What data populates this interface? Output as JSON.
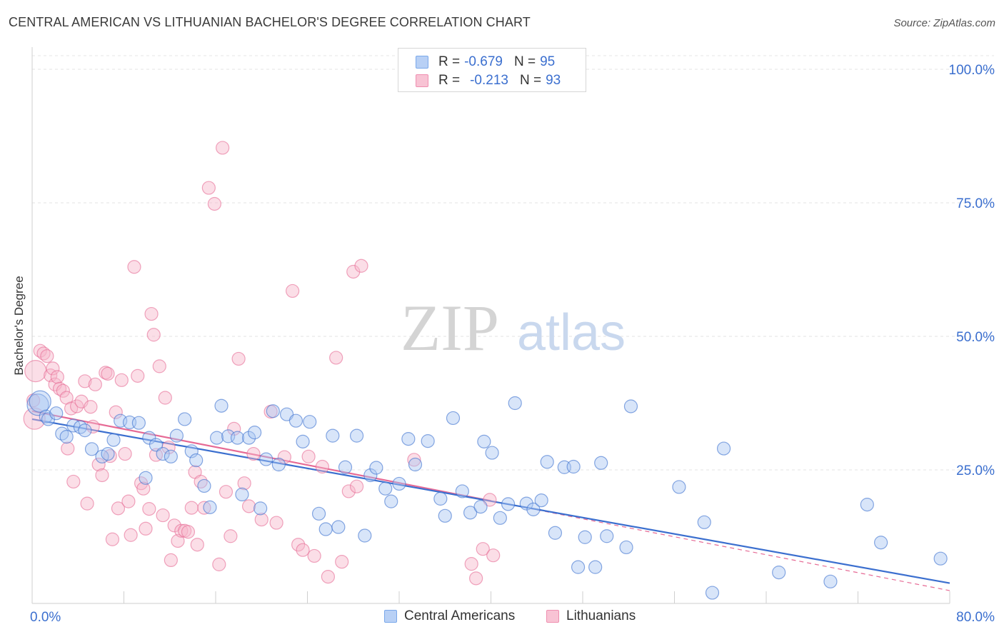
{
  "title": "CENTRAL AMERICAN VS LITHUANIAN BACHELOR'S DEGREE CORRELATION CHART",
  "source": "Source: ZipAtlas.com",
  "watermark": {
    "zip": "ZIP",
    "atlas": "atlas"
  },
  "legend": {
    "r_label": "R =",
    "n_label": "N =",
    "rows": [
      {
        "r": "-0.679",
        "n": "95",
        "color": "#7aa8ea",
        "fill": "#b8d0f5"
      },
      {
        "r": "-0.213",
        "n": "93",
        "color": "#ef8fb0",
        "fill": "#f8c3d4"
      }
    ]
  },
  "bottom_legend": [
    "Central Americans",
    "Lithuanians"
  ],
  "chart_data": {
    "type": "scatter",
    "title": "CENTRAL AMERICAN VS LITHUANIAN BACHELOR'S DEGREE CORRELATION CHART",
    "xlabel": "",
    "ylabel": "Bachelor's Degree",
    "xlim": [
      0,
      80
    ],
    "ylim": [
      0,
      100
    ],
    "x_tick_labels": [
      "0.0%",
      "80.0%"
    ],
    "y_tick_labels": [
      "25.0%",
      "50.0%",
      "75.0%",
      "100.0%"
    ],
    "y_ticks": [
      25,
      50,
      75,
      100
    ],
    "grid": true,
    "colors": {
      "central": "#3b6fcf",
      "central_fill": "#a9c6f1",
      "lith": "#e66a95",
      "lith_fill": "#f6b5ca",
      "tick_text": "#3b6fcf"
    },
    "series": [
      {
        "name": "Central Americans",
        "trend": {
          "x": [
            0,
            80
          ],
          "y": [
            34.5,
            3.8
          ]
        },
        "points": [
          [
            0.5,
            37.2
          ],
          [
            0.7,
            37.8
          ],
          [
            1.2,
            35.0
          ],
          [
            1.4,
            34.5
          ],
          [
            2.1,
            35.6
          ],
          [
            2.6,
            31.8
          ],
          [
            3.0,
            31.2
          ],
          [
            3.6,
            33.3
          ],
          [
            4.2,
            33.0
          ],
          [
            4.6,
            32.4
          ],
          [
            5.2,
            28.9
          ],
          [
            6.1,
            27.5
          ],
          [
            6.6,
            28.0
          ],
          [
            7.1,
            30.6
          ],
          [
            7.7,
            34.2
          ],
          [
            8.5,
            33.9
          ],
          [
            9.3,
            33.8
          ],
          [
            9.9,
            23.5
          ],
          [
            10.2,
            31.0
          ],
          [
            10.8,
            29.7
          ],
          [
            11.4,
            28.0
          ],
          [
            12.1,
            27.5
          ],
          [
            12.6,
            31.4
          ],
          [
            13.3,
            34.5
          ],
          [
            13.9,
            28.5
          ],
          [
            14.3,
            26.8
          ],
          [
            15.0,
            22.0
          ],
          [
            15.5,
            18.0
          ],
          [
            16.1,
            31.0
          ],
          [
            16.5,
            37.0
          ],
          [
            17.1,
            31.3
          ],
          [
            17.9,
            31.0
          ],
          [
            18.3,
            20.4
          ],
          [
            18.9,
            31.0
          ],
          [
            19.4,
            32.0
          ],
          [
            19.9,
            17.8
          ],
          [
            20.4,
            27.0
          ],
          [
            21.0,
            36.0
          ],
          [
            21.5,
            26.0
          ],
          [
            22.2,
            35.4
          ],
          [
            23.0,
            34.2
          ],
          [
            23.6,
            30.3
          ],
          [
            24.2,
            34.0
          ],
          [
            25.0,
            16.8
          ],
          [
            25.6,
            13.9
          ],
          [
            26.2,
            31.4
          ],
          [
            26.7,
            14.3
          ],
          [
            27.3,
            25.5
          ],
          [
            28.3,
            31.4
          ],
          [
            29.0,
            12.7
          ],
          [
            29.5,
            24.0
          ],
          [
            30.0,
            25.4
          ],
          [
            30.8,
            21.5
          ],
          [
            31.3,
            19.1
          ],
          [
            32.0,
            22.4
          ],
          [
            32.8,
            30.8
          ],
          [
            33.4,
            26.0
          ],
          [
            34.5,
            30.4
          ],
          [
            35.6,
            19.6
          ],
          [
            36.0,
            16.4
          ],
          [
            36.7,
            34.7
          ],
          [
            37.5,
            21.0
          ],
          [
            38.2,
            17.0
          ],
          [
            39.1,
            18.1
          ],
          [
            39.4,
            30.3
          ],
          [
            40.1,
            28.2
          ],
          [
            40.8,
            16.0
          ],
          [
            41.5,
            18.6
          ],
          [
            42.1,
            37.5
          ],
          [
            43.1,
            18.7
          ],
          [
            43.7,
            17.6
          ],
          [
            44.4,
            19.3
          ],
          [
            44.9,
            26.5
          ],
          [
            45.6,
            13.2
          ],
          [
            46.4,
            25.5
          ],
          [
            47.2,
            25.6
          ],
          [
            47.6,
            6.8
          ],
          [
            48.2,
            12.4
          ],
          [
            49.1,
            6.8
          ],
          [
            49.6,
            26.3
          ],
          [
            50.1,
            12.6
          ],
          [
            51.8,
            10.5
          ],
          [
            52.2,
            36.9
          ],
          [
            56.4,
            21.8
          ],
          [
            58.6,
            15.2
          ],
          [
            59.3,
            2.0
          ],
          [
            60.3,
            29.0
          ],
          [
            65.1,
            5.8
          ],
          [
            69.6,
            4.1
          ],
          [
            72.8,
            18.5
          ],
          [
            74.0,
            11.4
          ],
          [
            79.2,
            8.4
          ]
        ],
        "sizes": {
          "0.5|37.2": "large",
          "0.7|37.8": "large"
        }
      },
      {
        "name": "Lithuanians",
        "trend": {
          "x": [
            0,
            80
          ],
          "y": [
            36.0,
            2.4
          ]
        },
        "trend_solid_until_x": 40,
        "points": [
          [
            0.2,
            34.6
          ],
          [
            0.3,
            43.5
          ],
          [
            0.7,
            47.3
          ],
          [
            1.0,
            46.8
          ],
          [
            1.3,
            46.3
          ],
          [
            1.6,
            42.7
          ],
          [
            1.8,
            44.0
          ],
          [
            2.0,
            41.0
          ],
          [
            2.2,
            42.4
          ],
          [
            2.4,
            40.2
          ],
          [
            2.7,
            39.8
          ],
          [
            3.0,
            38.5
          ],
          [
            3.1,
            29.0
          ],
          [
            3.4,
            36.5
          ],
          [
            3.6,
            22.8
          ],
          [
            3.9,
            36.9
          ],
          [
            4.3,
            37.8
          ],
          [
            4.6,
            41.6
          ],
          [
            4.8,
            18.7
          ],
          [
            5.1,
            36.8
          ],
          [
            5.3,
            33.1
          ],
          [
            5.5,
            41.0
          ],
          [
            5.8,
            26.0
          ],
          [
            6.1,
            24.0
          ],
          [
            6.4,
            43.2
          ],
          [
            6.6,
            43.0
          ],
          [
            6.8,
            27.6
          ],
          [
            7.0,
            12.0
          ],
          [
            7.3,
            35.8
          ],
          [
            7.5,
            17.8
          ],
          [
            7.8,
            41.8
          ],
          [
            8.1,
            28.0
          ],
          [
            8.4,
            19.1
          ],
          [
            8.6,
            12.8
          ],
          [
            8.9,
            63.0
          ],
          [
            9.2,
            42.6
          ],
          [
            9.5,
            22.5
          ],
          [
            9.7,
            21.5
          ],
          [
            9.9,
            14.0
          ],
          [
            10.2,
            17.7
          ],
          [
            10.4,
            54.2
          ],
          [
            10.6,
            50.3
          ],
          [
            10.8,
            27.8
          ],
          [
            11.1,
            44.4
          ],
          [
            11.4,
            16.5
          ],
          [
            11.6,
            38.5
          ],
          [
            11.9,
            29.2
          ],
          [
            12.1,
            8.1
          ],
          [
            12.4,
            14.6
          ],
          [
            12.7,
            11.7
          ],
          [
            13.0,
            13.6
          ],
          [
            13.3,
            13.6
          ],
          [
            13.6,
            13.4
          ],
          [
            13.9,
            17.9
          ],
          [
            14.2,
            24.6
          ],
          [
            14.4,
            11.0
          ],
          [
            14.7,
            22.8
          ],
          [
            15.0,
            17.9
          ],
          [
            15.4,
            77.8
          ],
          [
            15.9,
            74.8
          ],
          [
            16.3,
            7.3
          ],
          [
            16.6,
            85.3
          ],
          [
            16.9,
            20.9
          ],
          [
            17.3,
            12.6
          ],
          [
            17.6,
            32.7
          ],
          [
            18.0,
            45.8
          ],
          [
            18.5,
            22.5
          ],
          [
            18.9,
            18.2
          ],
          [
            19.3,
            28.0
          ],
          [
            20.0,
            15.7
          ],
          [
            20.8,
            35.9
          ],
          [
            21.3,
            15.1
          ],
          [
            22.0,
            27.4
          ],
          [
            22.7,
            58.5
          ],
          [
            23.2,
            11.0
          ],
          [
            23.6,
            10.0
          ],
          [
            24.1,
            27.5
          ],
          [
            24.6,
            8.9
          ],
          [
            25.3,
            25.6
          ],
          [
            25.8,
            5.0
          ],
          [
            26.5,
            46.0
          ],
          [
            27.0,
            7.8
          ],
          [
            27.6,
            21.0
          ],
          [
            28.0,
            62.1
          ],
          [
            28.3,
            21.9
          ],
          [
            28.7,
            63.2
          ],
          [
            33.3,
            26.9
          ],
          [
            38.3,
            7.4
          ],
          [
            38.7,
            4.7
          ],
          [
            39.3,
            10.2
          ],
          [
            39.9,
            19.4
          ],
          [
            40.2,
            9.0
          ],
          [
            0.1,
            38.0
          ]
        ],
        "sizes": {
          "0.2|34.6": "large",
          "0.3|43.5": "large"
        }
      }
    ]
  }
}
